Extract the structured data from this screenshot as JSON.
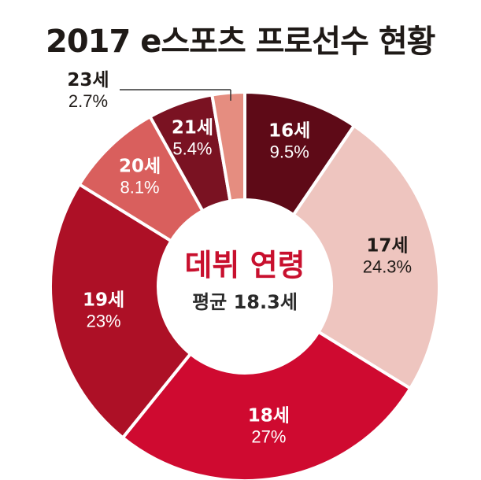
{
  "title": "2017 e스포츠 프로선수 현황",
  "center": {
    "headline": "데뷔 연령",
    "subline": "평균 18.3세"
  },
  "colors": {
    "title": "#1f1a17",
    "headline": "#c8102e",
    "subline": "#2a2a2a"
  },
  "chart_data": {
    "type": "pie",
    "style": "donut",
    "title": "2017 e스포츠 프로선수 현황",
    "categories": [
      "16세",
      "17세",
      "18세",
      "19세",
      "20세",
      "21세",
      "23세"
    ],
    "values": [
      9.5,
      24.3,
      27,
      23,
      8.1,
      5.4,
      2.7
    ],
    "value_labels": [
      "9.5%",
      "24.3%",
      "27%",
      "23%",
      "8.1%",
      "5.4%",
      "2.7%"
    ],
    "colors": [
      "#5e0a17",
      "#eec5bf",
      "#cf0a30",
      "#ad1026",
      "#d95f5d",
      "#7a1222",
      "#e58d80"
    ],
    "label_colors": [
      "#ffffff",
      "#1f1a17",
      "#ffffff",
      "#ffffff",
      "#ffffff",
      "#ffffff",
      "#1f1a17"
    ],
    "legend": "none"
  }
}
